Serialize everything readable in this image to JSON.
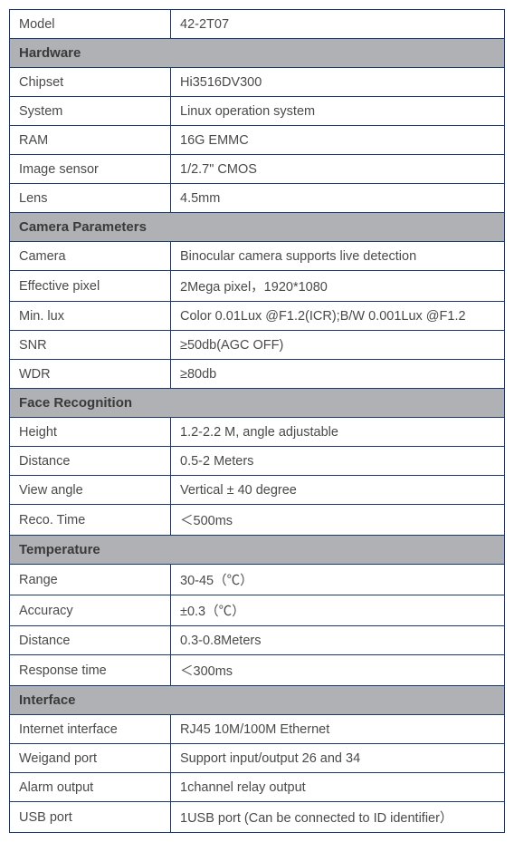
{
  "table": {
    "border_color": "#1a3a6e",
    "header_bg": "#b0b1b5",
    "text_color": "#4a4a4a",
    "rows": [
      {
        "type": "data",
        "label": "Model",
        "value": "42-2T07"
      },
      {
        "type": "section",
        "label": "Hardware"
      },
      {
        "type": "data",
        "label": "Chipset",
        "value": "Hi3516DV300"
      },
      {
        "type": "data",
        "label": "System",
        "value": "Linux operation system"
      },
      {
        "type": "data",
        "label": "RAM",
        "value": "16G EMMC"
      },
      {
        "type": "data",
        "label": "Image sensor",
        "value": "1/2.7\" CMOS"
      },
      {
        "type": "data",
        "label": "Lens",
        "value": "4.5mm"
      },
      {
        "type": "section",
        "label": "Camera Parameters"
      },
      {
        "type": "data",
        "label": "Camera",
        "value": "Binocular camera supports live detection"
      },
      {
        "type": "data",
        "label": "Effective pixel",
        "value": "2Mega pixel，1920*1080"
      },
      {
        "type": "data",
        "label": "Min. lux",
        "value": "Color 0.01Lux @F1.2(ICR);B/W 0.001Lux @F1.2"
      },
      {
        "type": "data",
        "label": "SNR",
        "value": "≥50db(AGC OFF)"
      },
      {
        "type": "data",
        "label": "WDR",
        "value": "≥80db"
      },
      {
        "type": "section",
        "label": "Face Recognition"
      },
      {
        "type": "data",
        "label": "Height",
        "value": "1.2-2.2 M, angle adjustable"
      },
      {
        "type": "data",
        "label": "Distance",
        "value": "0.5-2 Meters"
      },
      {
        "type": "data",
        "label": "View angle",
        "value": "Vertical ± 40 degree"
      },
      {
        "type": "data",
        "label": "Reco. Time",
        "value": "＜500ms"
      },
      {
        "type": "section",
        "label": "Temperature"
      },
      {
        "type": "data",
        "label": "Range",
        "value": "30-45（℃）"
      },
      {
        "type": "data",
        "label": "Accuracy",
        "value": "±0.3（℃）"
      },
      {
        "type": "data",
        "label": "Distance",
        "value": "0.3-0.8Meters"
      },
      {
        "type": "data",
        "label": "Response time",
        "value": "＜300ms"
      },
      {
        "type": "section",
        "label": "Interface"
      },
      {
        "type": "data",
        "label": "Internet interface",
        "value": "RJ45 10M/100M Ethernet"
      },
      {
        "type": "data",
        "label": "Weigand port",
        "value": "Support input/output 26 and 34"
      },
      {
        "type": "data",
        "label": "Alarm output",
        "value": "1channel relay output"
      },
      {
        "type": "data",
        "label": "USB port",
        "value": "1USB port (Can be connected to ID identifier）"
      }
    ]
  }
}
